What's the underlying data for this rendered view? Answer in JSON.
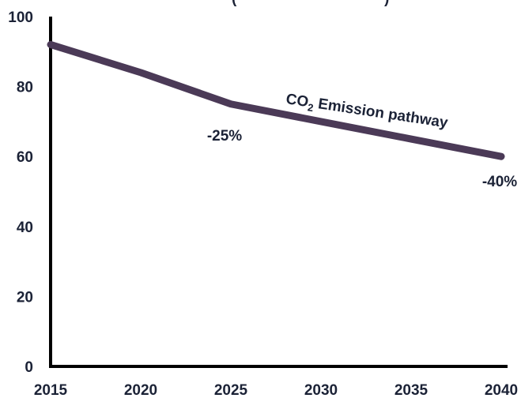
{
  "chart_data": {
    "type": "line",
    "title_fragment": "(",
    "title_fragment_right": ")",
    "x": [
      2015,
      2020,
      2025,
      2030,
      2035,
      2040
    ],
    "xlim": [
      2015,
      2040
    ],
    "ylim": [
      0,
      100
    ],
    "y_ticks": [
      0,
      20,
      40,
      60,
      80,
      100
    ],
    "series": [
      {
        "label_main": "CO",
        "label_sub": "2",
        "label_rest": " Emission pathway",
        "color": "#4b3a57",
        "values": [
          92,
          84,
          75,
          70,
          65,
          60
        ]
      }
    ],
    "annotations": [
      {
        "text": "-25%",
        "x": 2025,
        "y": 75
      },
      {
        "text": "-40%",
        "x": 2040,
        "y": 60
      }
    ],
    "grid": false,
    "axis_color": "#000000",
    "text_color": "#1b2236"
  }
}
